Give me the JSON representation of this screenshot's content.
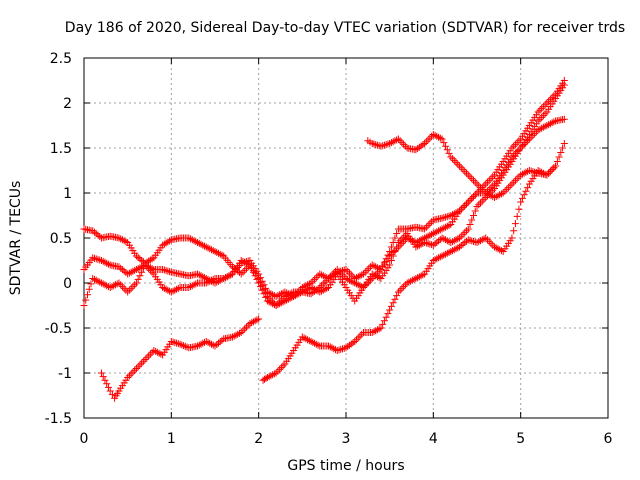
{
  "chart_data": {
    "type": "scatter",
    "title": "Day 186 of 2020, Sidereal Day-to-day VTEC variation (SDTVAR) for receiver trds",
    "xlabel": "GPS time / hours",
    "ylabel": "SDTVAR / TECUs",
    "xlim": [
      0,
      6
    ],
    "ylim": [
      -1.5,
      2.5
    ],
    "xticks": [
      0,
      1,
      2,
      3,
      4,
      5,
      6
    ],
    "yticks": [
      -1.5,
      -1,
      -0.5,
      0,
      0.5,
      1,
      1.5,
      2,
      2.5
    ],
    "xtick_labels": [
      "0",
      "1",
      "2",
      "3",
      "4",
      "5",
      "6"
    ],
    "ytick_labels": [
      "-1.5",
      "-1",
      "-0.5",
      "0",
      "0.5",
      "1",
      "1.5",
      "2",
      "2.5"
    ],
    "grid": true,
    "marker": "+",
    "color": "#ff0000",
    "series": [
      {
        "x": [
          0.0,
          0.1,
          0.2,
          0.3,
          0.4,
          0.5,
          0.6,
          0.7,
          0.8,
          0.9,
          1.0,
          1.1,
          1.2,
          1.3,
          1.4,
          1.5,
          1.6,
          1.7,
          1.8,
          1.9,
          2.0,
          2.1,
          2.2,
          2.3,
          2.4,
          2.5,
          2.6,
          2.7,
          2.8,
          2.9,
          3.0,
          3.1,
          3.2,
          3.3,
          3.4,
          3.5,
          3.6,
          3.7,
          3.8,
          3.9,
          4.0,
          4.1,
          4.2,
          4.3,
          4.4,
          4.5,
          4.6,
          4.7,
          4.8,
          4.9,
          5.0,
          5.1,
          5.2,
          5.3,
          5.4,
          5.5
        ],
        "y": [
          0.6,
          0.58,
          0.5,
          0.52,
          0.5,
          0.45,
          0.3,
          0.22,
          0.28,
          0.42,
          0.48,
          0.5,
          0.5,
          0.45,
          0.4,
          0.35,
          0.3,
          0.18,
          0.1,
          0.2,
          0.05,
          -0.15,
          -0.25,
          -0.15,
          -0.1,
          -0.1,
          -0.12,
          -0.05,
          0.05,
          0.12,
          0.15,
          0.05,
          0.1,
          0.2,
          0.15,
          0.35,
          0.6,
          0.6,
          0.62,
          0.6,
          0.7,
          0.72,
          0.75,
          0.8,
          0.9,
          1.0,
          1.0,
          1.1,
          1.25,
          1.4,
          1.5,
          1.6,
          1.7,
          1.75,
          1.8,
          1.82
        ]
      },
      {
        "x": [
          0.0,
          0.1,
          0.2,
          0.3,
          0.4,
          0.5,
          0.6,
          0.7,
          0.8,
          0.9,
          1.0,
          1.1,
          1.2,
          1.3,
          1.4,
          1.5,
          1.6,
          1.7,
          1.8,
          1.9,
          2.0,
          2.1,
          2.2,
          2.3,
          2.4,
          2.5,
          2.6,
          2.7,
          2.8,
          2.9,
          3.0,
          3.1,
          3.2,
          3.3,
          3.4,
          3.5,
          3.6,
          3.7,
          3.8,
          3.9,
          4.0,
          4.1,
          4.2,
          4.3,
          4.4,
          4.5,
          4.6,
          4.7,
          4.8,
          4.9,
          5.0,
          5.1,
          5.2,
          5.3,
          5.4,
          5.5
        ],
        "y": [
          0.15,
          0.28,
          0.25,
          0.2,
          0.18,
          0.1,
          0.15,
          0.2,
          0.15,
          0.15,
          0.12,
          0.1,
          0.08,
          0.1,
          0.05,
          0.0,
          0.05,
          0.1,
          0.22,
          0.25,
          0.1,
          -0.1,
          -0.15,
          -0.1,
          -0.15,
          -0.05,
          0.0,
          0.1,
          0.05,
          0.15,
          0.05,
          0.0,
          -0.05,
          0.05,
          0.15,
          0.3,
          0.4,
          0.5,
          0.45,
          0.5,
          0.55,
          0.6,
          0.65,
          0.8,
          0.9,
          1.0,
          1.1,
          1.2,
          1.35,
          1.5,
          1.6,
          1.75,
          1.9,
          2.0,
          2.1,
          2.25
        ]
      },
      {
        "x": [
          0.0,
          0.1,
          0.2,
          0.3,
          0.4,
          0.5,
          0.6,
          0.7,
          0.8,
          0.9,
          1.0,
          1.1,
          1.2,
          1.3,
          1.4,
          1.5,
          1.6,
          1.7,
          1.8,
          1.9,
          2.0,
          2.1,
          2.2,
          2.3,
          2.4,
          2.5,
          2.6,
          2.7,
          2.8,
          2.9,
          3.0,
          3.1,
          3.2,
          3.3,
          3.4,
          3.5,
          3.6,
          3.7,
          3.8,
          3.9,
          4.0,
          4.1,
          4.2,
          4.3,
          4.4,
          4.5,
          4.6,
          4.7,
          4.8,
          4.9,
          5.0,
          5.1,
          5.2,
          5.3,
          5.4,
          5.5
        ],
        "y": [
          -0.25,
          0.05,
          0.0,
          -0.05,
          0.0,
          -0.1,
          0.0,
          0.2,
          0.1,
          -0.05,
          -0.1,
          -0.05,
          -0.05,
          0.0,
          0.0,
          0.05,
          0.05,
          0.1,
          0.25,
          0.2,
          0.0,
          -0.2,
          -0.25,
          -0.2,
          -0.15,
          -0.1,
          -0.05,
          -0.1,
          -0.05,
          0.1,
          -0.05,
          -0.2,
          -0.05,
          0.1,
          0.05,
          0.2,
          0.45,
          0.55,
          0.4,
          0.45,
          0.42,
          0.5,
          0.45,
          0.5,
          0.6,
          0.85,
          0.95,
          1.05,
          1.2,
          1.35,
          1.5,
          1.65,
          1.8,
          1.9,
          2.05,
          2.2
        ]
      },
      {
        "x": [
          0.2,
          0.3,
          0.35,
          0.4,
          0.5,
          0.6,
          0.7,
          0.8,
          0.9,
          1.0,
          1.1,
          1.2,
          1.3,
          1.4,
          1.5,
          1.6,
          1.7,
          1.8,
          1.9,
          2.0
        ],
        "y": [
          -1.0,
          -1.2,
          -1.28,
          -1.2,
          -1.05,
          -0.95,
          -0.85,
          -0.75,
          -0.8,
          -0.65,
          -0.68,
          -0.72,
          -0.7,
          -0.65,
          -0.7,
          -0.62,
          -0.6,
          -0.55,
          -0.45,
          -0.4
        ]
      },
      {
        "x": [
          2.05,
          2.1,
          2.2,
          2.3,
          2.4,
          2.5,
          2.6,
          2.7,
          2.8,
          2.9,
          3.0,
          3.1,
          3.2,
          3.3,
          3.4,
          3.5,
          3.6,
          3.7,
          3.8,
          3.9,
          4.0,
          4.1,
          4.2,
          4.3,
          4.4,
          4.5,
          4.6,
          4.7,
          4.8,
          4.9,
          5.0,
          5.1,
          5.2,
          5.3,
          5.4,
          5.5
        ],
        "y": [
          -1.08,
          -1.05,
          -1.0,
          -0.9,
          -0.75,
          -0.6,
          -0.65,
          -0.7,
          -0.7,
          -0.75,
          -0.72,
          -0.65,
          -0.55,
          -0.55,
          -0.5,
          -0.3,
          -0.1,
          0.0,
          0.05,
          0.1,
          0.25,
          0.3,
          0.35,
          0.4,
          0.48,
          0.45,
          0.5,
          0.4,
          0.35,
          0.5,
          0.9,
          1.1,
          1.25,
          1.2,
          1.3,
          1.55
        ]
      },
      {
        "x": [
          3.25,
          3.3,
          3.4,
          3.5,
          3.6,
          3.7,
          3.8,
          3.9,
          4.0,
          4.1,
          4.2,
          4.3,
          4.4,
          4.5,
          4.6,
          4.7,
          4.8,
          4.9,
          5.0,
          5.1,
          5.2,
          5.3,
          5.4
        ],
        "y": [
          1.58,
          1.55,
          1.52,
          1.55,
          1.6,
          1.5,
          1.48,
          1.55,
          1.65,
          1.6,
          1.4,
          1.3,
          1.2,
          1.1,
          1.0,
          0.95,
          1.0,
          1.1,
          1.2,
          1.25,
          1.22,
          1.2,
          1.3
        ]
      }
    ]
  }
}
